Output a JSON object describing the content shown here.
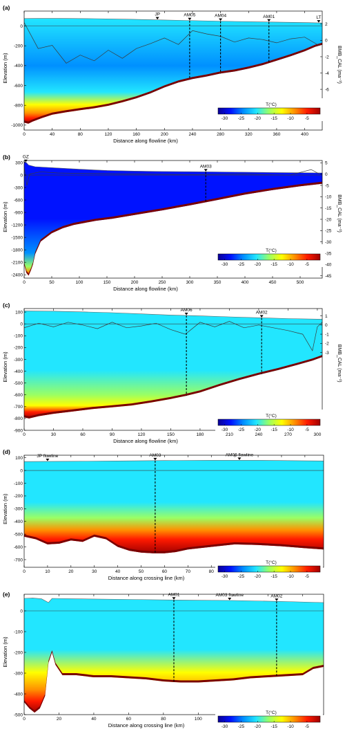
{
  "colors": {
    "colormap": [
      "#0a0096",
      "#0012ff",
      "#0090ff",
      "#22e6ff",
      "#9aff64",
      "#ffff00",
      "#ff9000",
      "#ff1a00",
      "#a00000"
    ],
    "bed": "#7a0000",
    "outline": "#606060",
    "bmb_line": "#3a3a3a"
  },
  "icons": {
    "marker": "inverted-triangle-icon"
  },
  "chart_data": [
    {
      "type": "heatmap",
      "panel": "(a)",
      "xlabel": "Distance along flowline (km)",
      "ylabel": "Elevation (m)",
      "y2label": "BMB_CAL (ma⁻¹)",
      "xlim": [
        0,
        425
      ],
      "ylim": [
        -1050,
        150
      ],
      "xticks": [
        0,
        40,
        80,
        120,
        160,
        200,
        240,
        280,
        320,
        360,
        400
      ],
      "yticks": [
        -1000,
        -800,
        -600,
        -400,
        -200,
        0
      ],
      "y2lim": [
        -11,
        3.6
      ],
      "y2ticks": [
        2,
        0,
        -2,
        -4,
        -6
      ],
      "surface": [
        [
          0,
          75
        ],
        [
          20,
          76
        ],
        [
          50,
          76
        ],
        [
          100,
          73
        ],
        [
          150,
          68
        ],
        [
          200,
          60
        ],
        [
          250,
          52
        ],
        [
          300,
          45
        ],
        [
          350,
          40
        ],
        [
          400,
          34
        ],
        [
          425,
          30
        ]
      ],
      "bed": [
        [
          0,
          -975
        ],
        [
          6,
          -985
        ],
        [
          12,
          -965
        ],
        [
          25,
          -930
        ],
        [
          40,
          -895
        ],
        [
          60,
          -870
        ],
        [
          80,
          -850
        ],
        [
          100,
          -830
        ],
        [
          120,
          -805
        ],
        [
          140,
          -770
        ],
        [
          160,
          -730
        ],
        [
          180,
          -680
        ],
        [
          200,
          -620
        ],
        [
          220,
          -570
        ],
        [
          240,
          -535
        ],
        [
          260,
          -510
        ],
        [
          280,
          -480
        ],
        [
          300,
          -460
        ],
        [
          320,
          -430
        ],
        [
          340,
          -395
        ],
        [
          360,
          -350
        ],
        [
          380,
          -305
        ],
        [
          400,
          -255
        ],
        [
          415,
          -210
        ],
        [
          425,
          -190
        ]
      ],
      "temperature_profile": [
        [
          0,
          -22
        ],
        [
          0.45,
          -24
        ],
        [
          0.7,
          -20
        ],
        [
          0.82,
          -14
        ],
        [
          0.9,
          -9
        ],
        [
          0.95,
          -5
        ],
        [
          1,
          -2
        ]
      ],
      "bmb": [
        [
          0,
          2.2
        ],
        [
          20,
          -1.0
        ],
        [
          40,
          -0.6
        ],
        [
          60,
          -2.8
        ],
        [
          80,
          -1.8
        ],
        [
          100,
          -2.5
        ],
        [
          120,
          -1.2
        ],
        [
          140,
          -2.2
        ],
        [
          160,
          -1.0
        ],
        [
          180,
          -0.4
        ],
        [
          200,
          0.3
        ],
        [
          220,
          -0.5
        ],
        [
          240,
          1.2
        ],
        [
          260,
          0.8
        ],
        [
          280,
          0.5
        ],
        [
          300,
          -0.2
        ],
        [
          320,
          0.3
        ],
        [
          340,
          0.1
        ],
        [
          360,
          -0.3
        ],
        [
          380,
          0.2
        ],
        [
          400,
          0.4
        ],
        [
          420,
          -0.6
        ]
      ],
      "markers": [
        {
          "label": "JP",
          "x": 190
        },
        {
          "label": "AM05",
          "x": 236,
          "line": true
        },
        {
          "label": "AM04",
          "x": 280,
          "line": true
        },
        {
          "label": "AM01",
          "x": 349,
          "line": true
        },
        {
          "label": "LT",
          "x": 420
        }
      ],
      "colorbar": {
        "label": "T(°C)",
        "ticks": [
          -30,
          -25,
          -20,
          -15,
          -10,
          -5
        ],
        "range": [
          -32,
          -1
        ]
      }
    },
    {
      "type": "heatmap",
      "panel": "(b)",
      "xlabel": "Distance along flowline (km)",
      "ylabel": "Elevation (m)",
      "y2label": "BMB_CAL (ma⁻¹)",
      "xlim": [
        0,
        540
      ],
      "ylim": [
        -2480,
        350
      ],
      "xticks": [
        0,
        50,
        100,
        150,
        200,
        250,
        300,
        350,
        400,
        450,
        500
      ],
      "yticks": [
        -2400,
        -2100,
        -1800,
        -1500,
        -1200,
        -900,
        -600,
        -300,
        0,
        300
      ],
      "y2lim": [
        -46,
        6
      ],
      "y2ticks": [
        5,
        0,
        -5,
        -10,
        -15,
        -20,
        -25,
        -30,
        -35,
        -40,
        -45
      ],
      "surface": [
        [
          0,
          320
        ],
        [
          4,
          300
        ],
        [
          8,
          240
        ],
        [
          20,
          200
        ],
        [
          60,
          170
        ],
        [
          100,
          140
        ],
        [
          150,
          110
        ],
        [
          200,
          95
        ],
        [
          250,
          85
        ],
        [
          300,
          80
        ],
        [
          350,
          75
        ],
        [
          400,
          68
        ],
        [
          450,
          60
        ],
        [
          500,
          55
        ],
        [
          540,
          50
        ]
      ],
      "bed": [
        [
          0,
          -2150
        ],
        [
          4,
          -2350
        ],
        [
          8,
          -2420
        ],
        [
          12,
          -2300
        ],
        [
          16,
          -2150
        ],
        [
          20,
          -1900
        ],
        [
          30,
          -1600
        ],
        [
          50,
          -1400
        ],
        [
          70,
          -1280
        ],
        [
          90,
          -1200
        ],
        [
          110,
          -1150
        ],
        [
          130,
          -1100
        ],
        [
          160,
          -1050
        ],
        [
          200,
          -960
        ],
        [
          250,
          -850
        ],
        [
          300,
          -730
        ],
        [
          350,
          -600
        ],
        [
          400,
          -470
        ],
        [
          450,
          -360
        ],
        [
          500,
          -270
        ],
        [
          540,
          -210
        ]
      ],
      "temperature_profile": [
        [
          0,
          -30
        ],
        [
          0.5,
          -29
        ],
        [
          0.8,
          -24
        ],
        [
          0.92,
          -15
        ],
        [
          0.97,
          -7
        ],
        [
          1,
          -2
        ]
      ],
      "bmb": [
        [
          0,
          3
        ],
        [
          5,
          -5
        ],
        [
          10,
          0
        ],
        [
          30,
          1
        ],
        [
          60,
          0.5
        ],
        [
          100,
          0.3
        ],
        [
          150,
          0.2
        ],
        [
          200,
          0
        ],
        [
          300,
          -0.2
        ],
        [
          400,
          0
        ],
        [
          480,
          -0.5
        ],
        [
          520,
          2
        ],
        [
          535,
          0
        ]
      ],
      "markers": [
        {
          "label": "GZ",
          "x": 3
        },
        {
          "label": "AM03",
          "x": 329,
          "line": true
        }
      ],
      "colorbar": {
        "label": "T(°C)",
        "ticks": [
          -30,
          -25,
          -20,
          -15,
          -10,
          -5
        ],
        "range": [
          -32,
          -1
        ]
      }
    },
    {
      "type": "heatmap",
      "panel": "(c)",
      "xlabel": "Distance along flowline (km)",
      "ylabel": "Elevation (m)",
      "y2label": "BMB_CAL (ma⁻¹)",
      "xlim": [
        0,
        305
      ],
      "ylim": [
        -900,
        130
      ],
      "xticks": [
        0,
        30,
        60,
        90,
        120,
        150,
        180,
        210,
        240,
        270,
        300
      ],
      "yticks": [
        -900,
        -800,
        -700,
        -600,
        -500,
        -400,
        -300,
        -200,
        -100,
        0,
        100
      ],
      "y2lim": [
        -11.5,
        1.8
      ],
      "y2ticks": [
        1,
        0,
        -1,
        -2,
        -3
      ],
      "surface": [
        [
          0,
          110
        ],
        [
          30,
          108
        ],
        [
          60,
          102
        ],
        [
          90,
          95
        ],
        [
          120,
          85
        ],
        [
          150,
          75
        ],
        [
          180,
          68
        ],
        [
          210,
          60
        ],
        [
          240,
          52
        ],
        [
          270,
          45
        ],
        [
          305,
          40
        ]
      ],
      "bed": [
        [
          0,
          -790
        ],
        [
          5,
          -800
        ],
        [
          15,
          -780
        ],
        [
          30,
          -760
        ],
        [
          50,
          -740
        ],
        [
          70,
          -720
        ],
        [
          90,
          -705
        ],
        [
          110,
          -690
        ],
        [
          130,
          -665
        ],
        [
          150,
          -635
        ],
        [
          165,
          -610
        ],
        [
          180,
          -580
        ],
        [
          200,
          -525
        ],
        [
          220,
          -475
        ],
        [
          240,
          -430
        ],
        [
          260,
          -390
        ],
        [
          280,
          -345
        ],
        [
          295,
          -310
        ],
        [
          305,
          -280
        ]
      ],
      "temperature_profile": [
        [
          0,
          -22
        ],
        [
          0.55,
          -20
        ],
        [
          0.78,
          -16
        ],
        [
          0.88,
          -11
        ],
        [
          0.94,
          -6
        ],
        [
          1,
          -2
        ]
      ],
      "bmb": [
        [
          0,
          -0.3
        ],
        [
          15,
          0.2
        ],
        [
          30,
          -0.2
        ],
        [
          45,
          0.3
        ],
        [
          60,
          0.0
        ],
        [
          75,
          -0.4
        ],
        [
          90,
          0.3
        ],
        [
          105,
          -0.3
        ],
        [
          120,
          -0.1
        ],
        [
          135,
          0.2
        ],
        [
          150,
          -0.5
        ],
        [
          165,
          -1.0
        ],
        [
          180,
          0.3
        ],
        [
          195,
          -0.2
        ],
        [
          210,
          0.4
        ],
        [
          225,
          -0.3
        ],
        [
          240,
          0.0
        ],
        [
          255,
          -0.3
        ],
        [
          270,
          -0.6
        ],
        [
          285,
          -1.0
        ],
        [
          295,
          -2.8
        ],
        [
          300,
          -0.2
        ],
        [
          305,
          0.3
        ]
      ],
      "markers": [
        {
          "label": "AM06",
          "x": 166,
          "line": true
        },
        {
          "label": "AM02",
          "x": 243,
          "line": true
        }
      ],
      "colorbar": {
        "label": "T(°C)",
        "ticks": [
          -30,
          -25,
          -20,
          -15,
          -10,
          -5
        ],
        "range": [
          -32,
          -1
        ]
      }
    },
    {
      "type": "heatmap",
      "panel": "(d)",
      "xlabel": "Distance along crossing line (km)",
      "ylabel": "Elevation (m)",
      "xlim": [
        0,
        128
      ],
      "ylim": [
        -760,
        120
      ],
      "xticks": [
        0,
        10,
        20,
        30,
        40,
        50,
        60,
        70,
        80,
        90,
        100,
        110,
        120
      ],
      "yticks": [
        -700,
        -600,
        -500,
        -400,
        -300,
        -200,
        -100,
        0,
        100
      ],
      "surface": [
        [
          0,
          70
        ],
        [
          20,
          72
        ],
        [
          40,
          75
        ],
        [
          60,
          78
        ],
        [
          80,
          80
        ],
        [
          100,
          80
        ],
        [
          120,
          76
        ],
        [
          128,
          75
        ]
      ],
      "bed": [
        [
          0,
          -520
        ],
        [
          5,
          -540
        ],
        [
          10,
          -580
        ],
        [
          15,
          -575
        ],
        [
          20,
          -550
        ],
        [
          25,
          -560
        ],
        [
          30,
          -520
        ],
        [
          35,
          -540
        ],
        [
          40,
          -600
        ],
        [
          45,
          -630
        ],
        [
          50,
          -645
        ],
        [
          55,
          -650
        ],
        [
          60,
          -650
        ],
        [
          65,
          -640
        ],
        [
          70,
          -620
        ],
        [
          80,
          -600
        ],
        [
          90,
          -580
        ],
        [
          100,
          -585
        ],
        [
          110,
          -595
        ],
        [
          120,
          -610
        ],
        [
          128,
          -620
        ]
      ],
      "temperature_profile": [
        [
          0,
          -21
        ],
        [
          0.45,
          -19
        ],
        [
          0.62,
          -15
        ],
        [
          0.75,
          -10
        ],
        [
          0.85,
          -6
        ],
        [
          1,
          -2
        ]
      ],
      "markers": [
        {
          "label": "JP flowline",
          "x": 10
        },
        {
          "label": "AM03",
          "x": 56,
          "line": true
        },
        {
          "label": "AM06 flowline",
          "x": 92
        }
      ],
      "colorbar": {
        "label": "T(°C)",
        "ticks": [
          -30,
          -25,
          -20,
          -15,
          -10,
          -5
        ],
        "range": [
          -32,
          -1
        ]
      }
    },
    {
      "type": "heatmap",
      "panel": "(e)",
      "xlabel": "Distance along crossing line (km)",
      "ylabel": "Elevation (m)",
      "xlim": [
        0,
        172
      ],
      "ylim": [
        -500,
        80
      ],
      "xticks": [
        0,
        20,
        40,
        60,
        80,
        100,
        120,
        140,
        160
      ],
      "yticks": [
        -500,
        -400,
        -300,
        -200,
        -100,
        0
      ],
      "surface": [
        [
          0,
          60
        ],
        [
          5,
          62
        ],
        [
          10,
          58
        ],
        [
          14,
          40
        ],
        [
          16,
          60
        ],
        [
          30,
          58
        ],
        [
          60,
          55
        ],
        [
          90,
          52
        ],
        [
          120,
          50
        ],
        [
          150,
          45
        ],
        [
          172,
          40
        ]
      ],
      "bed": [
        [
          0,
          -440
        ],
        [
          3,
          -470
        ],
        [
          6,
          -490
        ],
        [
          9,
          -470
        ],
        [
          12,
          -410
        ],
        [
          14,
          -250
        ],
        [
          16,
          -200
        ],
        [
          18,
          -260
        ],
        [
          22,
          -310
        ],
        [
          30,
          -310
        ],
        [
          40,
          -320
        ],
        [
          50,
          -320
        ],
        [
          60,
          -325
        ],
        [
          70,
          -330
        ],
        [
          80,
          -340
        ],
        [
          90,
          -345
        ],
        [
          100,
          -345
        ],
        [
          110,
          -340
        ],
        [
          120,
          -335
        ],
        [
          130,
          -325
        ],
        [
          140,
          -320
        ],
        [
          150,
          -315
        ],
        [
          160,
          -310
        ],
        [
          166,
          -280
        ],
        [
          172,
          -270
        ]
      ],
      "temperature_profile": [
        [
          0,
          -20
        ],
        [
          0.45,
          -19
        ],
        [
          0.65,
          -14
        ],
        [
          0.8,
          -9
        ],
        [
          0.9,
          -6
        ],
        [
          1,
          -2
        ]
      ],
      "markers": [
        {
          "label": "AM01",
          "x": 86,
          "line": true
        },
        {
          "label": "AM03 flowline",
          "x": 118
        },
        {
          "label": "AM02",
          "x": 145,
          "line": true
        }
      ],
      "colorbar": {
        "label": "T(°C)",
        "ticks": [
          -30,
          -25,
          -20,
          -15,
          -10,
          -5
        ],
        "range": [
          -32,
          -1
        ]
      }
    }
  ]
}
